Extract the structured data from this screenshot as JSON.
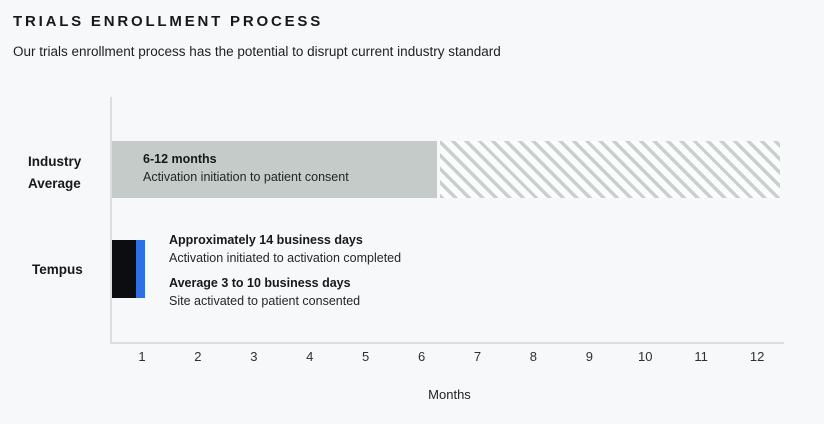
{
  "header": {
    "title": "TRIALS ENROLLMENT PROCESS",
    "subtitle": "Our trials enrollment process has the potential to disrupt current industry standard"
  },
  "chart_data": {
    "type": "bar",
    "orientation": "horizontal",
    "title": "TRIALS ENROLLMENT PROCESS",
    "subtitle": "Our trials enrollment process has the potential to disrupt current industry standard",
    "xlabel": "Months",
    "xlim": [
      0,
      12
    ],
    "x_ticks": [
      "1",
      "2",
      "3",
      "4",
      "5",
      "6",
      "7",
      "8",
      "9",
      "10",
      "11",
      "12"
    ],
    "grid": false,
    "legend": "none",
    "rows": [
      {
        "category": "Industry Average",
        "value_label": "6-12 months",
        "description": "Activation initiation to patient consent",
        "bar_solid_months": [
          0,
          5.8
        ],
        "bar_hatched_months": [
          5.8,
          12
        ],
        "bar_style": "solid gray segment for months 0-6, diagonal hatched segment for months 6-12"
      },
      {
        "category": "Tempus",
        "bar_months": [
          0,
          0.55
        ],
        "segments": [
          {
            "name": "activation-period",
            "color": "#0b0d11"
          },
          {
            "name": "consent-period",
            "color": "#2f6fe6"
          }
        ],
        "annotations": [
          {
            "title": "Approximately 14 business days",
            "description": "Activation initiated to activation completed"
          },
          {
            "title": "Average 3 to 10 business days",
            "description": "Site activated to patient consented"
          }
        ]
      }
    ],
    "colors": {
      "background": "#f7f8fa",
      "industry_bar": "#c4cbc9",
      "hatch_stripe": "#c9d1cf",
      "tempus_black": "#0b0d11",
      "tempus_blue": "#2f6fe6",
      "axis_line": "#dbdee0",
      "text": "#17181a"
    }
  }
}
